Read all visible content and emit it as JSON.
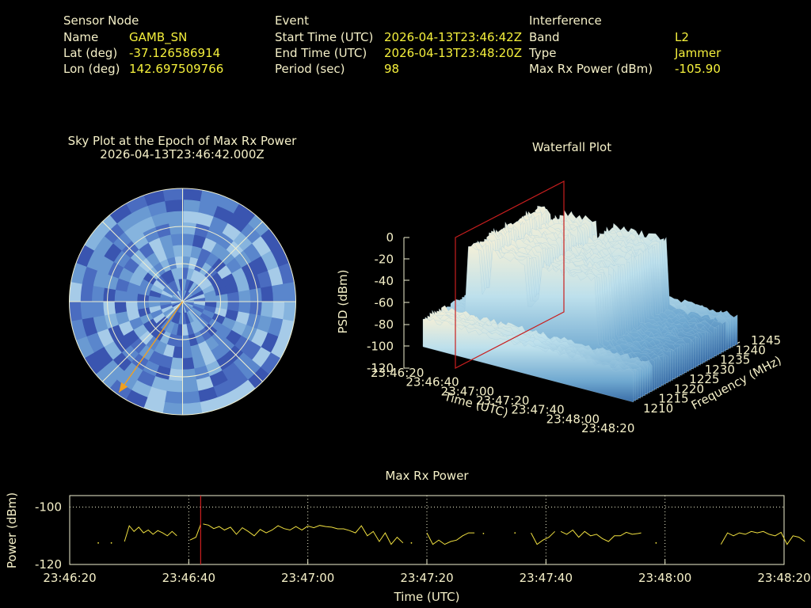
{
  "header": {
    "sensor": {
      "title": "Sensor Node",
      "name_label": "Name",
      "name_value": "GAMB_SN",
      "lat_label": "Lat (deg)",
      "lat_value": "-37.126586914",
      "lon_label": "Lon (deg)",
      "lon_value": "142.697509766"
    },
    "event": {
      "title": "Event",
      "start_label": "Start Time (UTC)",
      "start_value": "2026-04-13T23:46:42Z",
      "end_label": "End Time (UTC)",
      "end_value": "2026-04-13T23:48:20Z",
      "period_label": "Period (sec)",
      "period_value": "98"
    },
    "interference": {
      "title": "Interference",
      "band_label": "Band",
      "band_value": "L2",
      "type_label": "Type",
      "type_value": "Jammer",
      "power_label": "Max Rx Power (dBm)",
      "power_value": "-105.90"
    }
  },
  "skyplot": {
    "title_line1": "Sky Plot at the Epoch of Max Rx Power",
    "title_line2": "2026-04-13T23:46:42.000Z",
    "colors": [
      "#3a55b0",
      "#4a6cc0",
      "#5a86cc",
      "#6a9ad2",
      "#86b4de",
      "#a6cbe8"
    ],
    "arrow_color": "#f0a020",
    "arrow_azimuth_deg": 215,
    "arrow_elevation_deg": 2
  },
  "chart_data": [
    {
      "type": "area",
      "title": "Waterfall Plot",
      "xlabel": "Time (UTC)",
      "ylabel": "Frequency (MHz)",
      "zlabel": "PSD (dBm)",
      "x_ticks": [
        "23:46:20",
        "23:46:40",
        "23:47:00",
        "23:47:20",
        "23:47:40",
        "23:48:00",
        "23:48:20"
      ],
      "y_ticks": [
        "1210",
        "1215",
        "1220",
        "1225",
        "1230",
        "1235",
        "1240",
        "1245"
      ],
      "z_ticks": [
        "0",
        "-20",
        "-40",
        "-60",
        "-80",
        "-100",
        "-120"
      ],
      "zlim": [
        -120,
        0
      ],
      "marker_color": "#c81e1e",
      "marker_time": "23:46:42"
    },
    {
      "type": "line",
      "title": "Max Rx Power",
      "xlabel": "Time (UTC)",
      "ylabel": "Power (dBm)",
      "ylim": [
        -120,
        -96
      ],
      "y_ticks": [
        "-100",
        "-120"
      ],
      "x_ticks": [
        "23:46:20",
        "23:46:40",
        "23:47:00",
        "23:47:20",
        "23:47:40",
        "23:48:00",
        "23:48:20"
      ],
      "x_range_sec": [
        0,
        120
      ],
      "marker_sec": 22,
      "line_color": "#f0e040",
      "marker_color": "#d02020",
      "series": [
        {
          "x": [
            4.8
          ],
          "y": [
            -112.5
          ]
        },
        {
          "x": [
            7.0
          ],
          "y": [
            -112.5
          ]
        },
        {
          "x": [
            9.2,
            10.0,
            10.8,
            11.6,
            12.4,
            13.2,
            14.0,
            14.8,
            15.6,
            16.4,
            17.2,
            18.0
          ],
          "y": [
            -112,
            -106.5,
            -108.5,
            -107,
            -109,
            -108,
            -109.5,
            -108.2,
            -109,
            -110,
            -108.5,
            -110
          ]
        },
        {
          "x": [
            20.2,
            21.2,
            22.0
          ],
          "y": [
            -111.5,
            -110.5,
            -106
          ]
        },
        {
          "x": [
            22.4,
            23.3,
            24.2,
            25.1,
            26.0,
            27.0,
            28.0,
            29.0,
            30.0,
            31.0,
            32.0,
            33.0,
            34.0,
            35.0,
            36.0,
            37.0,
            38.0,
            39.0,
            40.0,
            41.0,
            42.0,
            43.0,
            44.0,
            45.0,
            46.0,
            47.0,
            48.0,
            49.0,
            50.0,
            51.0,
            52.0,
            53.0,
            54.0,
            55.0,
            56.0
          ],
          "y": [
            -105.9,
            -106.3,
            -107.5,
            -106.8,
            -108,
            -107,
            -109.5,
            -107.2,
            -108.5,
            -110,
            -107.8,
            -109,
            -108,
            -106.5,
            -107.5,
            -108,
            -106.8,
            -108,
            -106.6,
            -107.2,
            -106.4,
            -106.8,
            -107,
            -107.6,
            -107.6,
            -108.2,
            -109,
            -106.5,
            -110,
            -108.5,
            -112,
            -109,
            -113,
            -110.5,
            -112.5
          ]
        },
        {
          "x": [
            57.4
          ],
          "y": [
            -112.5
          ]
        },
        {
          "x": [
            60.0,
            61.0,
            62.0,
            63.0,
            64.0,
            65.0,
            66.0,
            67.0,
            68.0
          ],
          "y": [
            -109,
            -113,
            -111.5,
            -113,
            -112,
            -111.5,
            -110,
            -109,
            -109
          ]
        },
        {
          "x": [
            69.5
          ],
          "y": [
            -109.2
          ]
        },
        {
          "x": [
            74.8
          ],
          "y": [
            -109
          ]
        },
        {
          "x": [
            77.5,
            78.5,
            79.5,
            80.5,
            81.5
          ],
          "y": [
            -109,
            -113,
            -111.5,
            -110.5,
            -108.5
          ]
        },
        {
          "x": [
            82.5,
            83.5,
            84.5,
            85.5,
            86.5,
            87.5,
            88.5,
            89.5,
            90.5,
            91.5,
            92.5,
            93.5,
            94.5,
            95.5,
            96.0
          ],
          "y": [
            -108.5,
            -109.5,
            -108,
            -110.5,
            -108.5,
            -110,
            -109.5,
            -111,
            -112,
            -110,
            -110,
            -108.8,
            -109.5,
            -109.2,
            -109
          ]
        },
        {
          "x": [
            98.5
          ],
          "y": [
            -112.5
          ]
        },
        {
          "x": [
            109.4,
            110.5,
            111.5,
            112.5,
            113.5,
            114.5,
            115.5,
            116.5,
            117.5,
            118.5,
            119.5,
            120.5,
            121.5,
            122.5,
            123.5
          ],
          "y": [
            -113,
            -109,
            -110,
            -109,
            -109.5,
            -108.5,
            -109,
            -108.5,
            -109.5,
            -110,
            -108.8,
            -113,
            -110,
            -110.5,
            -112
          ]
        }
      ]
    }
  ]
}
